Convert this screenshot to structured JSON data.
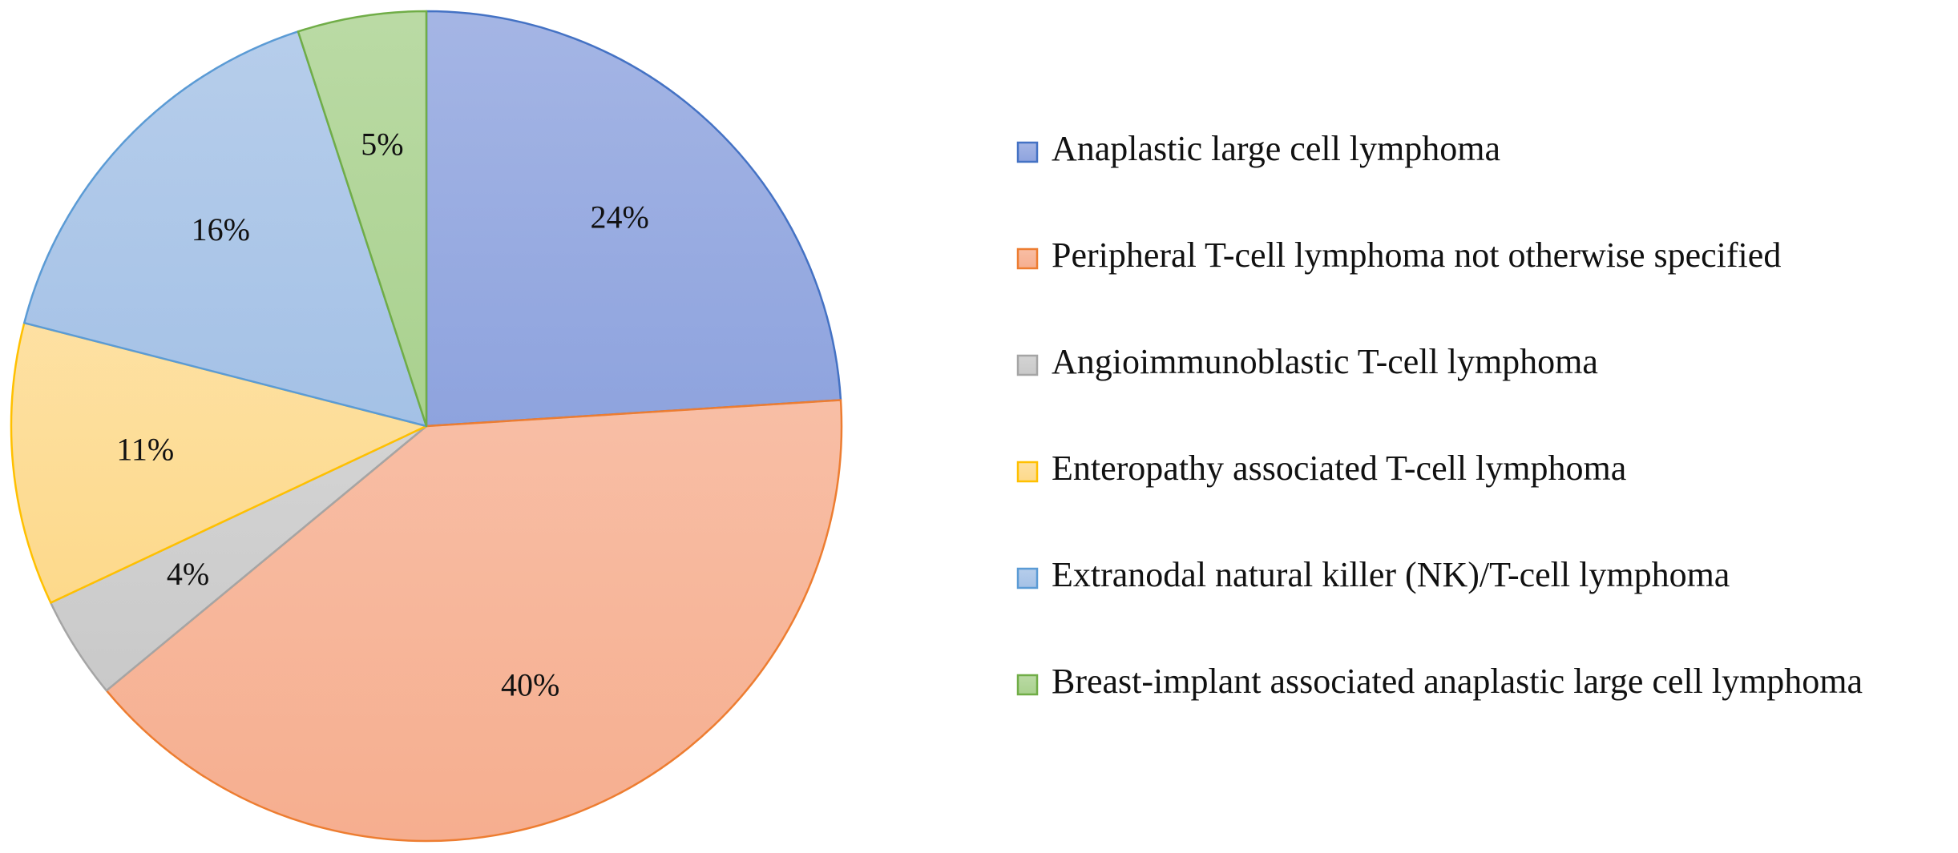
{
  "chart_data": {
    "type": "pie",
    "title": "",
    "legend_position": "right",
    "slices": [
      {
        "label": "Anaplastic large cell lymphoma",
        "value": 24,
        "display": "24%",
        "fill": "#8EA3DE",
        "stroke": "#4472C4"
      },
      {
        "label": "Peripheral T-cell lymphoma not otherwise specified",
        "value": 40,
        "display": "40%",
        "fill": "#F6AE8F",
        "stroke": "#ED7D31"
      },
      {
        "label": "Angioimmunoblastic T-cell lymphoma",
        "value": 4,
        "display": "4%",
        "fill": "#C9C9C9",
        "stroke": "#A5A5A5"
      },
      {
        "label": "Enteropathy associated T-cell lymphoma",
        "value": 11,
        "display": "11%",
        "fill": "#FDD98B",
        "stroke": "#FFC000"
      },
      {
        "label": "Extranodal natural killer (NK)/T-cell lymphoma",
        "value": 16,
        "display": "16%",
        "fill": "#A4C1E6",
        "stroke": "#5B9BD5"
      },
      {
        "label": "Breast-implant associated anaplastic large cell lymphoma",
        "value": 5,
        "display": "5%",
        "fill": "#A9D18E",
        "stroke": "#70AD47"
      }
    ]
  }
}
